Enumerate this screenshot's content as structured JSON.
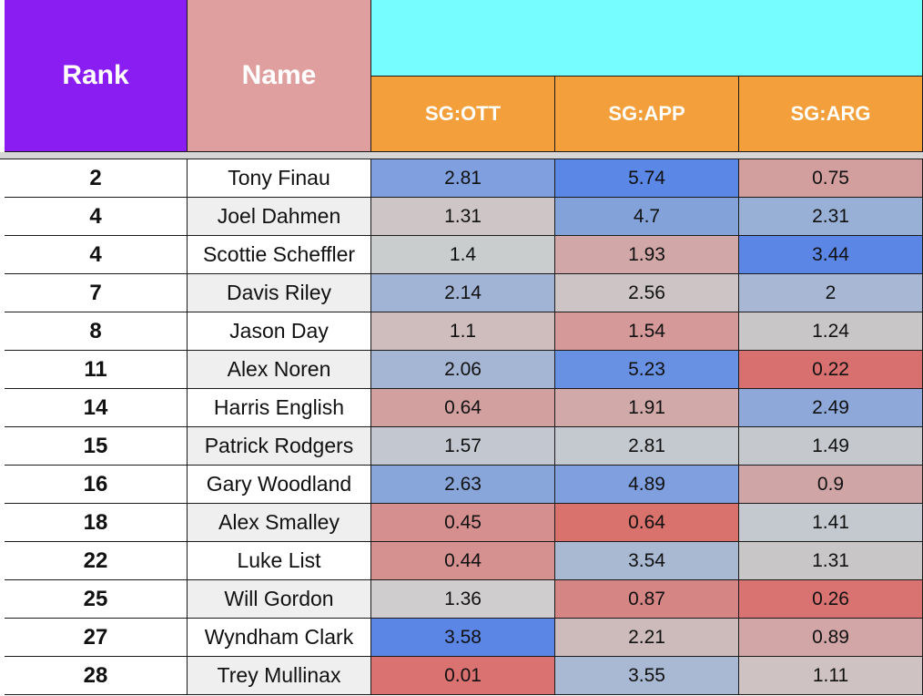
{
  "headers": {
    "rank": "Rank",
    "name": "Name",
    "columns": [
      "SG:OTT",
      "SG:APP",
      "SG:ARG"
    ]
  },
  "rows": [
    {
      "rank": "2",
      "name": "Tony Finau",
      "ott": "2.81",
      "app": "5.74",
      "arg": "0.75"
    },
    {
      "rank": "4",
      "name": "Joel Dahmen",
      "ott": "1.31",
      "app": "4.7",
      "arg": "2.31"
    },
    {
      "rank": "4",
      "name": "Scottie Scheffler",
      "ott": "1.4",
      "app": "1.93",
      "arg": "3.44"
    },
    {
      "rank": "7",
      "name": "Davis Riley",
      "ott": "2.14",
      "app": "2.56",
      "arg": "2"
    },
    {
      "rank": "8",
      "name": "Jason Day",
      "ott": "1.1",
      "app": "1.54",
      "arg": "1.24"
    },
    {
      "rank": "11",
      "name": "Alex Noren",
      "ott": "2.06",
      "app": "5.23",
      "arg": "0.22"
    },
    {
      "rank": "14",
      "name": "Harris English",
      "ott": "0.64",
      "app": "1.91",
      "arg": "2.49"
    },
    {
      "rank": "15",
      "name": "Patrick Rodgers",
      "ott": "1.57",
      "app": "2.81",
      "arg": "1.49"
    },
    {
      "rank": "16",
      "name": "Gary Woodland",
      "ott": "2.63",
      "app": "4.89",
      "arg": "0.9"
    },
    {
      "rank": "18",
      "name": "Alex Smalley",
      "ott": "0.45",
      "app": "0.64",
      "arg": "1.41"
    },
    {
      "rank": "22",
      "name": "Luke List",
      "ott": "0.44",
      "app": "3.54",
      "arg": "1.31"
    },
    {
      "rank": "25",
      "name": "Will Gordon",
      "ott": "1.36",
      "app": "0.87",
      "arg": "0.26"
    },
    {
      "rank": "27",
      "name": "Wyndham Clark",
      "ott": "3.58",
      "app": "2.21",
      "arg": "0.89"
    },
    {
      "rank": "28",
      "name": "Trey Mullinax",
      "ott": "0.01",
      "app": "3.55",
      "arg": "1.11"
    }
  ],
  "colors": {
    "rank_header": "#8a1df2",
    "name_header": "#df9f9f",
    "top_header": "#75fdff",
    "sg_header": "#f3a03c",
    "name_row_alt": "#efefef",
    "cells": [
      [
        "#7f9fde",
        "#5b88e6",
        "#d39e9e"
      ],
      [
        "#cec6c6",
        "#83a2da",
        "#98afd6"
      ],
      [
        "#c9cdcd",
        "#d2a7a7",
        "#5b86e6"
      ],
      [
        "#a2b4d6",
        "#cdc5c5",
        "#a7b7d4"
      ],
      [
        "#cfbcbc",
        "#d59999",
        "#c8c6c6"
      ],
      [
        "#a5b6d4",
        "#6991e3",
        "#d7706e"
      ],
      [
        "#d3a0a0",
        "#d2a9a9",
        "#8ea9d9"
      ],
      [
        "#c3c8d0",
        "#c4c8cf",
        "#c5c8cd"
      ],
      [
        "#89a6da",
        "#7f9fde",
        "#d0a5a5"
      ],
      [
        "#d58f8f",
        "#d9716c",
        "#c4c8cf"
      ],
      [
        "#d59090",
        "#a9b9d2",
        "#c8c6c6"
      ],
      [
        "#cfcdcd",
        "#d68585",
        "#d97371"
      ],
      [
        "#5b86e6",
        "#cdbaba",
        "#d2a6a6"
      ],
      [
        "#d97270",
        "#a9b9d3",
        "#cfc2c2"
      ]
    ]
  }
}
